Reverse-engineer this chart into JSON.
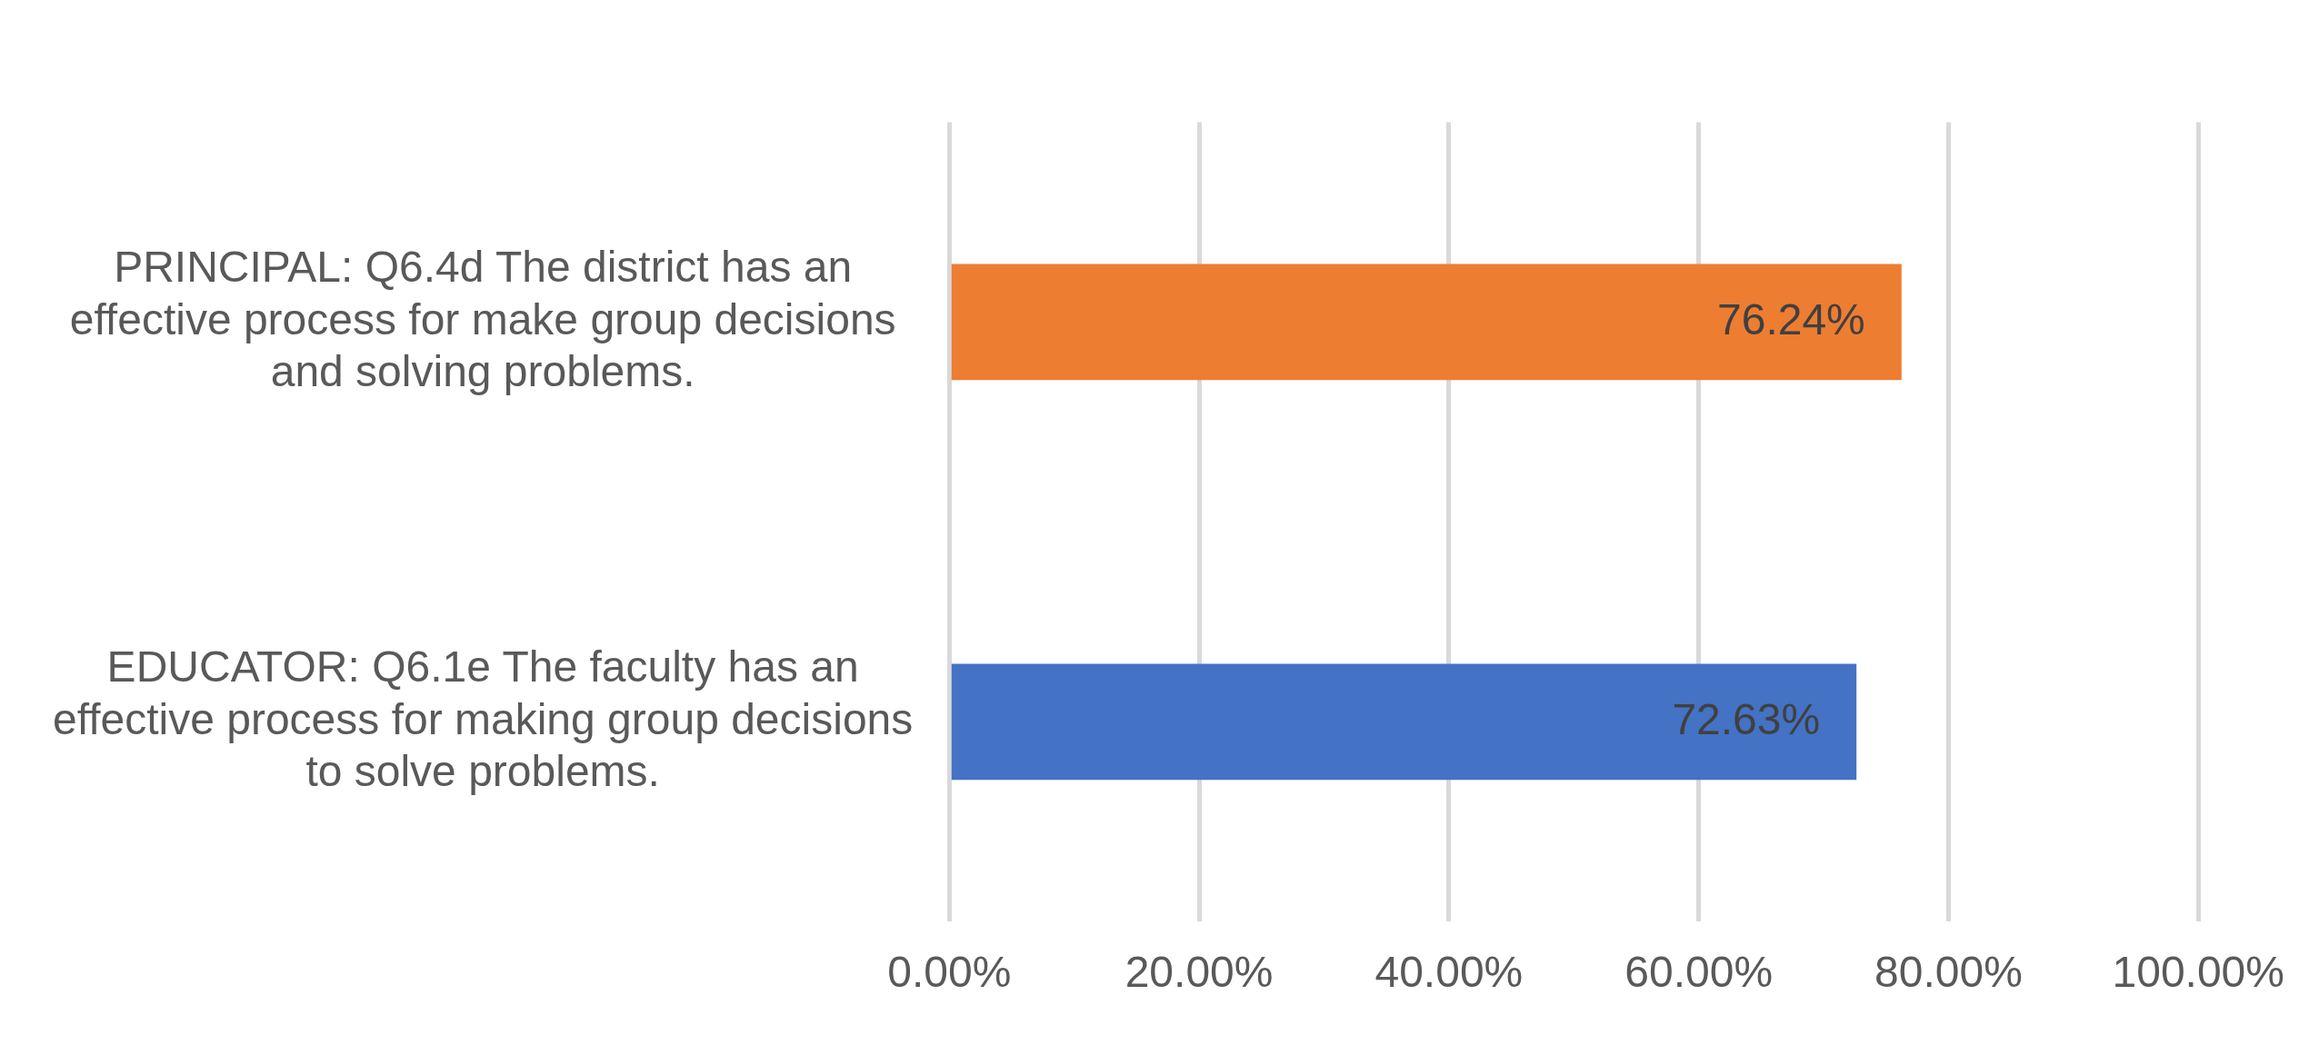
{
  "chart_data": {
    "type": "bar",
    "orientation": "horizontal",
    "categories": [
      "PRINCIPAL: Q6.4d The district has an effective process for make group decisions and solving problems.",
      "EDUCATOR: Q6.1e The faculty has an effective process for making group decisions to solve problems."
    ],
    "values": [
      76.24,
      72.63
    ],
    "colors": [
      "#ed7d31",
      "#4472c4"
    ],
    "value_labels": [
      "76.24%",
      "72.63%"
    ],
    "xlim": [
      0,
      100
    ],
    "xticks": [
      {
        "value": 0,
        "label": "0.00%"
      },
      {
        "value": 20,
        "label": "20.00%"
      },
      {
        "value": 40,
        "label": "40.00%"
      },
      {
        "value": 60,
        "label": "60.00%"
      },
      {
        "value": 80,
        "label": "80.00%"
      },
      {
        "value": 100,
        "label": "100.00%"
      }
    ],
    "grid": "x",
    "legend": false
  }
}
